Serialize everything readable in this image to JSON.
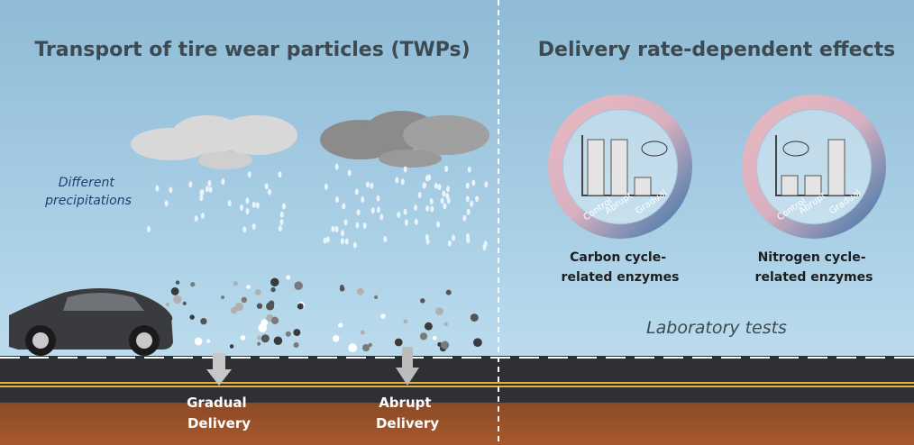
{
  "left_panel": {
    "title": "Transport of tire wear particles (TWPs)",
    "precipitation_label": [
      "Different",
      "precipitations"
    ],
    "deliveries": [
      {
        "label": [
          "Gradual",
          "Delivery"
        ]
      },
      {
        "label": [
          "Abrupt",
          "Delivery"
        ]
      }
    ]
  },
  "right_panel": {
    "title": "Delivery rate-dependent effects",
    "enzyme_panels": [
      {
        "label": [
          "Carbon cycle-",
          "related enzymes"
        ],
        "axis_labels": [
          "Control",
          "Abrupt",
          "Gradual"
        ]
      },
      {
        "label": [
          "Nitrogen cycle-",
          "related enzymes"
        ],
        "axis_labels": [
          "Control",
          "Abrupt",
          "Gradual"
        ]
      }
    ],
    "footer_label": "Laboratory tests"
  }
}
